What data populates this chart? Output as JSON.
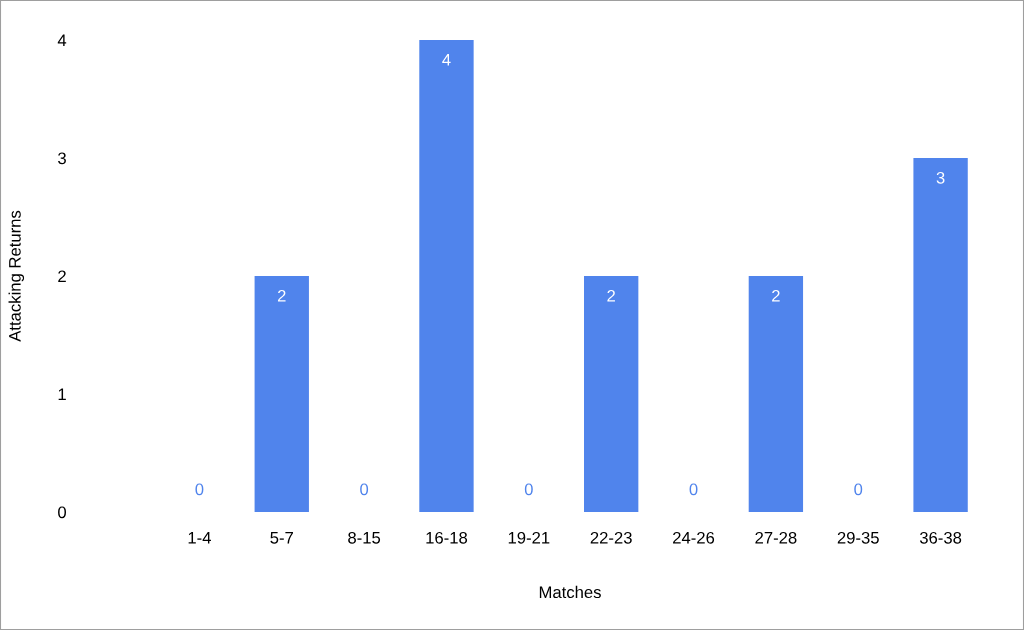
{
  "chart_data": {
    "type": "bar",
    "xlabel": "Matches",
    "ylabel": "Attacking Returns",
    "categories": [
      "1-4",
      "5-7",
      "8-15",
      "16-18",
      "19-21",
      "22-23",
      "24-26",
      "27-28",
      "29-35",
      "36-38"
    ],
    "values": [
      0,
      2,
      0,
      4,
      0,
      2,
      0,
      2,
      0,
      3
    ],
    "color": "#5084ec",
    "ylim": [
      0,
      4
    ],
    "yticks": [
      0,
      1,
      2,
      3,
      4
    ],
    "grid": false,
    "data_labels": true
  }
}
